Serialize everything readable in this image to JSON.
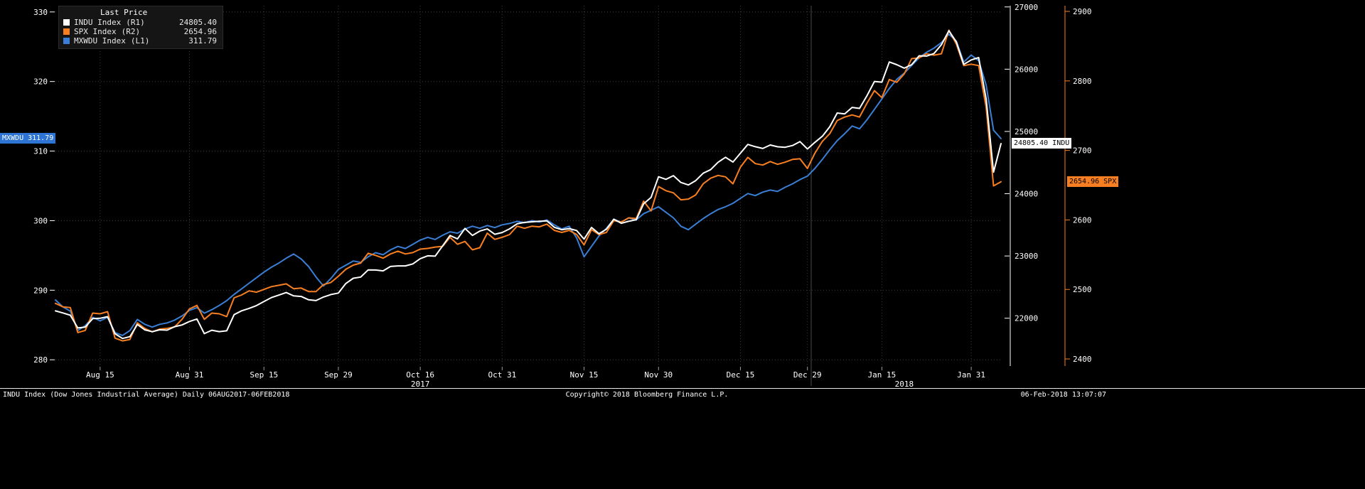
{
  "legend": {
    "title": "Last Price",
    "rows": [
      {
        "key": "indu",
        "label": "INDU Index",
        "axis": "(R1)",
        "value": "24805.40",
        "color": "#ffffff"
      },
      {
        "key": "spx",
        "label": "SPX Index",
        "axis": "(R2)",
        "value": "2654.96",
        "color": "#f77f21"
      },
      {
        "key": "mxwdu",
        "label": "MXWDU Index",
        "axis": "(L1)",
        "value": "311.79",
        "color": "#3a7fd5"
      }
    ]
  },
  "badges": {
    "left": {
      "text": "MXWDU 311.79",
      "bg": "#2e74d4",
      "fg": "#ffffff"
    },
    "right_indu": {
      "text": "24805.40 INDU",
      "bg": "#ffffff",
      "fg": "#000000"
    },
    "right_spx": {
      "text": "2654.96 SPX",
      "bg": "#f77f21",
      "fg": "#000000"
    }
  },
  "footer": {
    "left": "INDU Index (Dow Jones Industrial Average)  Daily 06AUG2017-06FEB2018",
    "center": "Copyright© 2018 Bloomberg Finance L.P.",
    "right": "06-Feb-2018 13:07:07"
  },
  "chart_data": {
    "type": "line",
    "title": "INDU Index (Dow Jones Industrial Average) Daily 06AUG2017-06FEB2018",
    "frequency": "Daily",
    "x_start": "06AUG2017",
    "x_end": "06FEB2018",
    "legend_position": "top-left",
    "grid": true,
    "background": "#000000",
    "x_ticks": [
      {
        "label": "Aug 15",
        "index": 6
      },
      {
        "label": "Aug 31",
        "index": 18
      },
      {
        "label": "Sep 15",
        "index": 28
      },
      {
        "label": "Sep 29",
        "index": 38
      },
      {
        "label": "Oct 16",
        "index": 49
      },
      {
        "label": "Oct 31",
        "index": 60
      },
      {
        "label": "Nov 15",
        "index": 71
      },
      {
        "label": "Nov 30",
        "index": 81
      },
      {
        "label": "Dec 15",
        "index": 92
      },
      {
        "label": "Dec 29",
        "index": 101
      },
      {
        "label": "Jan 15",
        "index": 111
      },
      {
        "label": "Jan 31",
        "index": 123
      }
    ],
    "year_labels": [
      {
        "label": "2017",
        "index": 49
      },
      {
        "label": "2018",
        "index": 114
      }
    ],
    "year_divider_index": 101.5,
    "axes": {
      "left_l1": {
        "label": "MXWDU Index (L1)",
        "ticks": [
          330,
          320,
          310,
          300,
          290,
          280
        ],
        "min": 279.1,
        "max": 330.9
      },
      "right_r1": {
        "label": "INDU Index (R1)",
        "ticks": [
          27000,
          26000,
          25000,
          24000,
          23000,
          22000
        ],
        "min": 21232,
        "max": 27020
      },
      "right_r2": {
        "label": "SPX Index (R2)",
        "ticks": [
          2900,
          2800,
          2700,
          2600,
          2500,
          2400
        ],
        "min": 2389.8,
        "max": 2908.2
      }
    },
    "series": [
      {
        "id": "indu",
        "name": "INDU Index",
        "axis": "right_r1",
        "color": "#ffffff",
        "last": 24805.4,
        "values": [
          22118,
          22085,
          22048,
          21844,
          21858,
          21993,
          21999,
          22025,
          21750,
          21675,
          21703,
          21899,
          21813,
          21783,
          21814,
          21808,
          21865,
          21892,
          21948,
          21988,
          21753,
          21807,
          21784,
          21798,
          22057,
          22119,
          22158,
          22203,
          22268,
          22331,
          22371,
          22413,
          22359,
          22350,
          22296,
          22284,
          22341,
          22381,
          22405,
          22557,
          22642,
          22661,
          22775,
          22774,
          22761,
          22831,
          22841,
          22841,
          22872,
          22957,
          23003,
          22997,
          23163,
          23329,
          23274,
          23442,
          23330,
          23400,
          23434,
          23349,
          23377,
          23435,
          23516,
          23539,
          23548,
          23557,
          23563,
          23461,
          23422,
          23440,
          23409,
          23271,
          23458,
          23358,
          23430,
          23591,
          23526,
          23558,
          23581,
          23837,
          23941,
          24272,
          24231,
          24290,
          24181,
          24141,
          24211,
          24329,
          24386,
          24505,
          24585,
          24508,
          24651,
          24792,
          24755,
          24727,
          24782,
          24754,
          24746,
          24774,
          24837,
          24719,
          24825,
          24923,
          25075,
          25296,
          25283,
          25386,
          25370,
          25575,
          25803,
          25792,
          26116,
          26072,
          26017,
          26072,
          26215,
          26211,
          26252,
          26393,
          26617,
          26439,
          26077,
          26149,
          26187,
          25521,
          24346,
          24805.4
        ]
      },
      {
        "id": "spx",
        "name": "SPX Index",
        "axis": "right_r2",
        "color": "#f77f21",
        "last": 2654.96,
        "values": [
          2480,
          2475,
          2474,
          2438,
          2441,
          2466,
          2465,
          2468,
          2430,
          2426,
          2428,
          2452,
          2444,
          2439,
          2443,
          2444,
          2446,
          2457,
          2472,
          2477,
          2457,
          2466,
          2465,
          2461,
          2488,
          2492,
          2498,
          2496,
          2500,
          2504,
          2506,
          2508,
          2501,
          2502,
          2497,
          2497,
          2507,
          2510,
          2519,
          2529,
          2535,
          2538,
          2552,
          2549,
          2545,
          2551,
          2555,
          2551,
          2553,
          2558,
          2559,
          2561,
          2562,
          2575,
          2565,
          2569,
          2557,
          2560,
          2581,
          2572,
          2575,
          2579,
          2591,
          2588,
          2591,
          2590,
          2594,
          2585,
          2582,
          2585,
          2579,
          2564,
          2586,
          2579,
          2582,
          2599,
          2597,
          2603,
          2602,
          2627,
          2613,
          2648,
          2642,
          2639,
          2629,
          2630,
          2636,
          2652,
          2660,
          2664,
          2662,
          2652,
          2676,
          2690,
          2681,
          2679,
          2684,
          2680,
          2683,
          2687,
          2688,
          2674,
          2696,
          2713,
          2724,
          2743,
          2748,
          2751,
          2748,
          2768,
          2786,
          2776,
          2802,
          2798,
          2810,
          2832,
          2833,
          2839,
          2837,
          2839,
          2873,
          2853,
          2822,
          2824,
          2822,
          2762,
          2649,
          2654.96
        ]
      },
      {
        "id": "mxwdu",
        "name": "MXWDU Index",
        "axis": "left_l1",
        "color": "#3a7fd5",
        "last": 311.79,
        "values": [
          288.6,
          287.6,
          287.0,
          284.2,
          284.9,
          286.1,
          285.6,
          286.1,
          283.9,
          283.5,
          284.2,
          285.8,
          285.1,
          284.7,
          285.1,
          285.3,
          285.7,
          286.3,
          287.1,
          287.5,
          286.7,
          287.2,
          287.8,
          288.5,
          289.4,
          290.2,
          291.0,
          291.8,
          292.6,
          293.3,
          293.9,
          294.6,
          295.2,
          294.5,
          293.4,
          291.9,
          290.6,
          291.7,
          293.0,
          293.6,
          294.2,
          294.0,
          294.8,
          295.4,
          295.1,
          295.8,
          296.3,
          296.0,
          296.6,
          297.2,
          297.6,
          297.3,
          297.9,
          298.4,
          298.2,
          298.8,
          299.2,
          298.9,
          299.3,
          299.0,
          299.4,
          299.6,
          299.9,
          299.7,
          300.0,
          299.8,
          300.1,
          299.4,
          298.8,
          299.2,
          297.5,
          294.8,
          296.3,
          297.8,
          298.9,
          300.2,
          299.8,
          300.4,
          300.1,
          301.0,
          301.5,
          302.0,
          301.2,
          300.4,
          299.2,
          298.7,
          299.5,
          300.3,
          301.0,
          301.6,
          302.0,
          302.5,
          303.2,
          303.9,
          303.6,
          304.1,
          304.4,
          304.2,
          304.8,
          305.3,
          305.9,
          306.4,
          307.5,
          308.8,
          310.2,
          311.5,
          312.5,
          313.6,
          313.2,
          314.5,
          316.0,
          317.5,
          319.0,
          320.3,
          321.2,
          322.3,
          323.4,
          324.2,
          324.8,
          325.6,
          326.8,
          325.8,
          322.8,
          323.8,
          323.0,
          319.5,
          313.0,
          311.79
        ]
      }
    ]
  }
}
